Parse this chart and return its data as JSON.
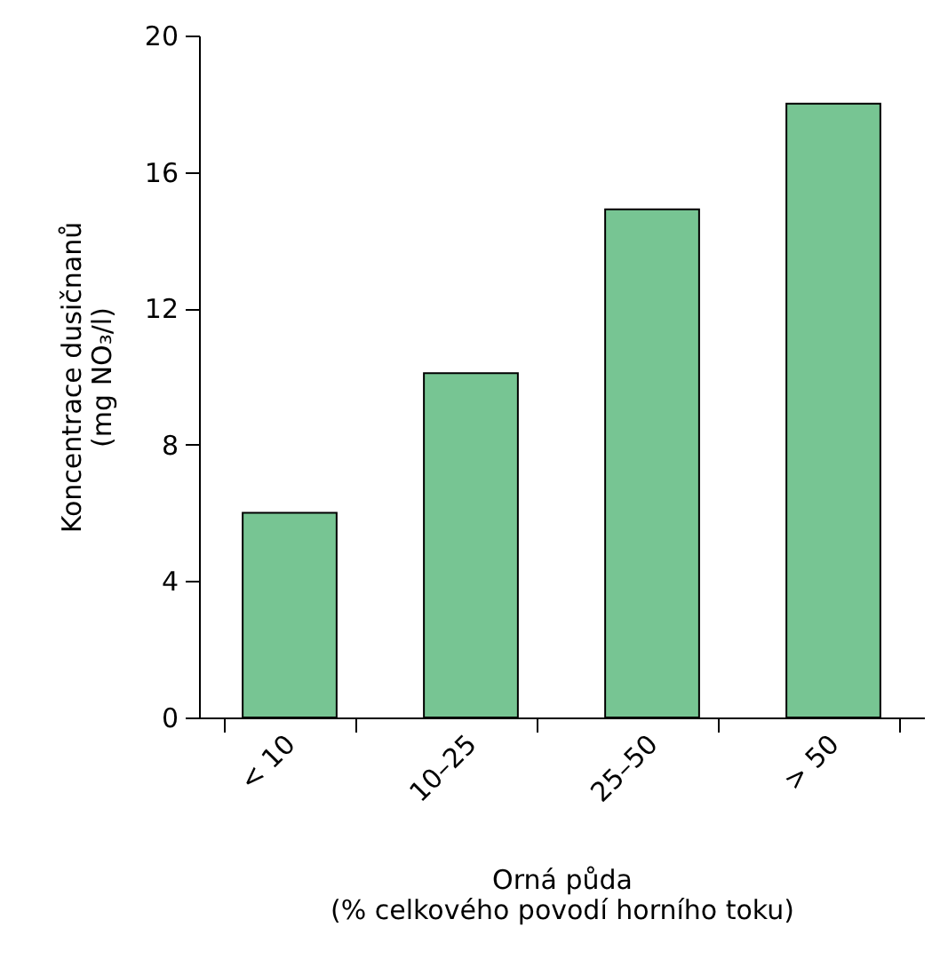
{
  "chart_data": {
    "type": "bar",
    "xlabel": "Orná půda\n(% celkového povodí horního toku)",
    "ylabel": "Koncentrace dusičnanů\n(mg NO₃/l)",
    "categories": [
      "< 10",
      "10–25",
      "25–50",
      "> 50"
    ],
    "values": [
      6.0,
      10.1,
      14.9,
      18.0
    ],
    "color": "#77c593",
    "ylim": [
      0,
      20
    ],
    "yticks": [
      0,
      4,
      8,
      12,
      16,
      20
    ],
    "grid": false
  }
}
